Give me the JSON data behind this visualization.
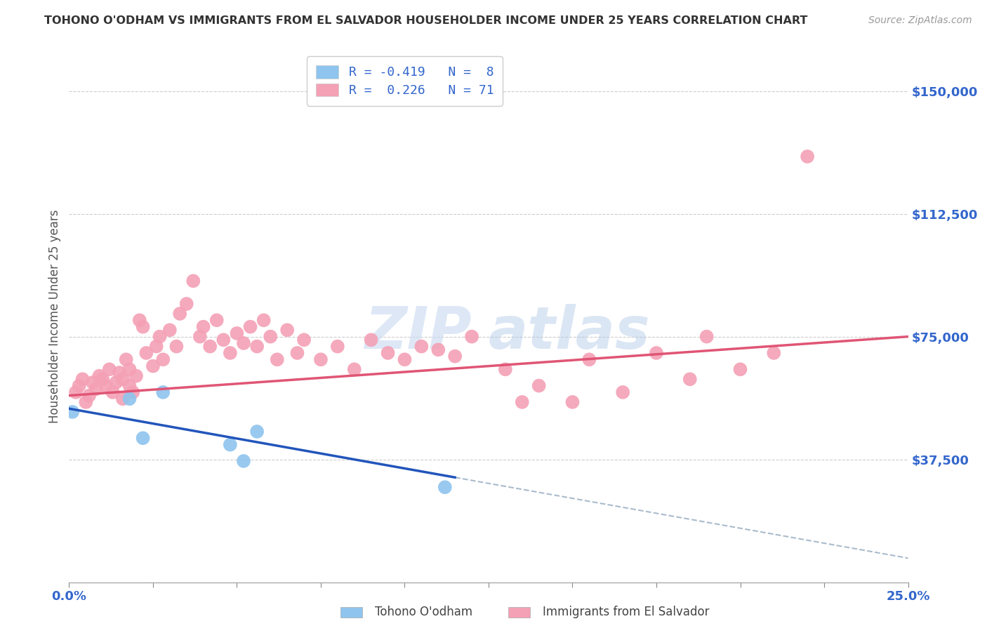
{
  "title": "TOHONO O'ODHAM VS IMMIGRANTS FROM EL SALVADOR HOUSEHOLDER INCOME UNDER 25 YEARS CORRELATION CHART",
  "source": "Source: ZipAtlas.com",
  "ylabel": "Householder Income Under 25 years",
  "y_tick_labels": [
    "$37,500",
    "$75,000",
    "$112,500",
    "$150,000"
  ],
  "y_tick_values": [
    37500,
    75000,
    112500,
    150000
  ],
  "xlim": [
    0.0,
    0.25
  ],
  "ylim": [
    0,
    162500
  ],
  "legend_line1": "R = -0.419   N =  8",
  "legend_line2": "R =  0.226   N = 71",
  "color_blue": "#8EC4EE",
  "color_pink": "#F4A0B5",
  "color_blue_line": "#2255BB",
  "color_pink_line": "#E05575",
  "color_dashed": "#AABBCC",
  "blue_scatter_x": [
    0.001,
    0.018,
    0.022,
    0.048,
    0.052,
    0.112,
    0.028,
    0.056
  ],
  "blue_scatter_y": [
    52000,
    56000,
    44000,
    42000,
    37000,
    29000,
    58000,
    46000
  ],
  "pink_scatter_x": [
    0.002,
    0.003,
    0.004,
    0.005,
    0.006,
    0.007,
    0.008,
    0.009,
    0.01,
    0.011,
    0.012,
    0.013,
    0.014,
    0.015,
    0.016,
    0.016,
    0.017,
    0.018,
    0.018,
    0.019,
    0.02,
    0.021,
    0.022,
    0.023,
    0.025,
    0.026,
    0.027,
    0.028,
    0.03,
    0.032,
    0.033,
    0.035,
    0.037,
    0.039,
    0.04,
    0.042,
    0.044,
    0.046,
    0.048,
    0.05,
    0.052,
    0.054,
    0.056,
    0.058,
    0.06,
    0.062,
    0.065,
    0.068,
    0.07,
    0.075,
    0.08,
    0.085,
    0.09,
    0.095,
    0.1,
    0.105,
    0.11,
    0.115,
    0.12,
    0.13,
    0.135,
    0.14,
    0.15,
    0.155,
    0.165,
    0.175,
    0.185,
    0.19,
    0.2,
    0.21,
    0.22
  ],
  "pink_scatter_y": [
    58000,
    60000,
    62000,
    55000,
    57000,
    61000,
    59000,
    63000,
    62000,
    60000,
    65000,
    58000,
    61000,
    64000,
    56000,
    62000,
    68000,
    60000,
    65000,
    58000,
    63000,
    80000,
    78000,
    70000,
    66000,
    72000,
    75000,
    68000,
    77000,
    72000,
    82000,
    85000,
    92000,
    75000,
    78000,
    72000,
    80000,
    74000,
    70000,
    76000,
    73000,
    78000,
    72000,
    80000,
    75000,
    68000,
    77000,
    70000,
    74000,
    68000,
    72000,
    65000,
    74000,
    70000,
    68000,
    72000,
    71000,
    69000,
    75000,
    65000,
    55000,
    60000,
    55000,
    68000,
    58000,
    70000,
    62000,
    75000,
    65000,
    70000,
    130000
  ],
  "background_color": "#FFFFFF",
  "grid_color": "#CCCCCC",
  "title_color": "#333333",
  "axis_color": "#3366CC",
  "watermark_zip": "ZIP",
  "watermark_atlas": "atlas"
}
